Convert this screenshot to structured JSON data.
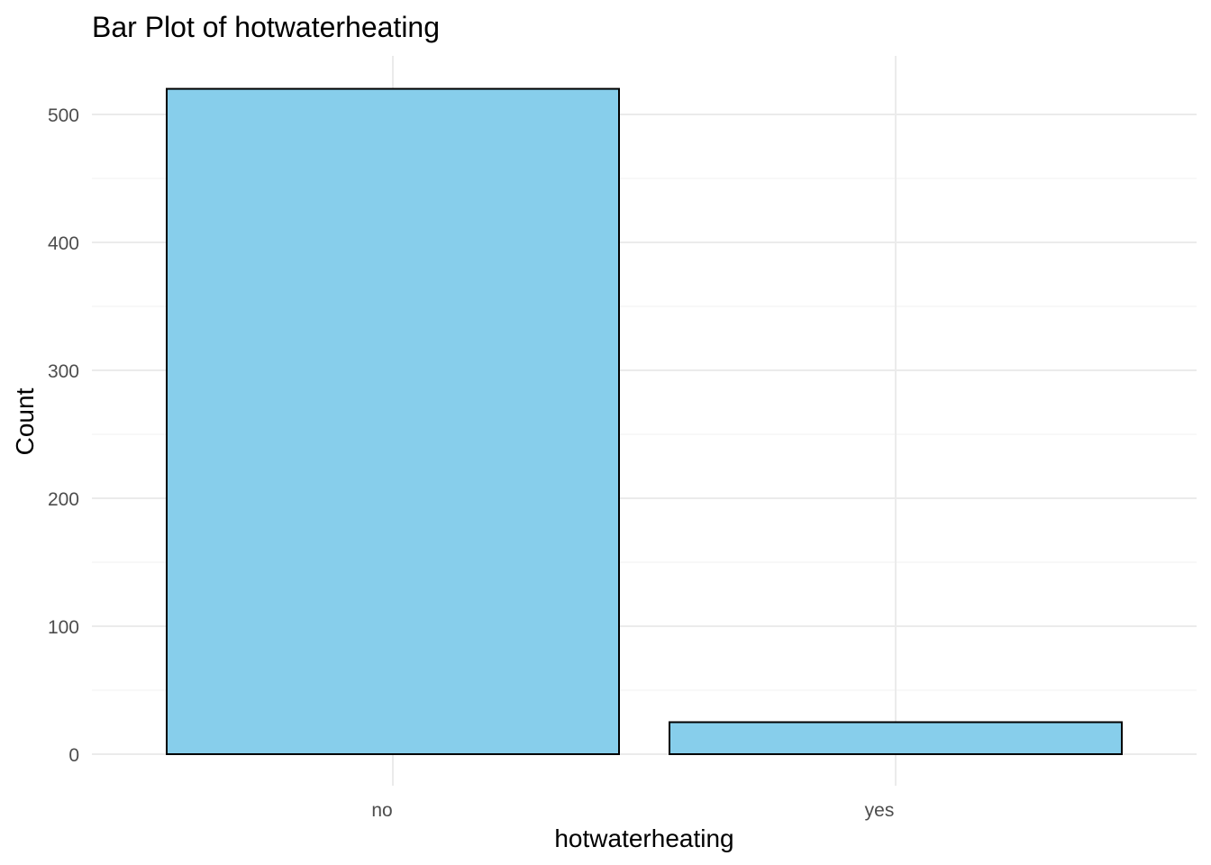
{
  "chart_data": {
    "type": "bar",
    "title": "Bar Plot of hotwaterheating",
    "xlabel": "hotwaterheating",
    "ylabel": "Count",
    "categories": [
      "no",
      "yes"
    ],
    "values": [
      520,
      25
    ],
    "ylim": [
      0,
      545
    ],
    "yticks": [
      0,
      100,
      200,
      300,
      400,
      500
    ],
    "grid": true,
    "legend": "none",
    "colors": {
      "bar_fill": "#87ceeb",
      "bar_stroke": "#000000"
    }
  }
}
